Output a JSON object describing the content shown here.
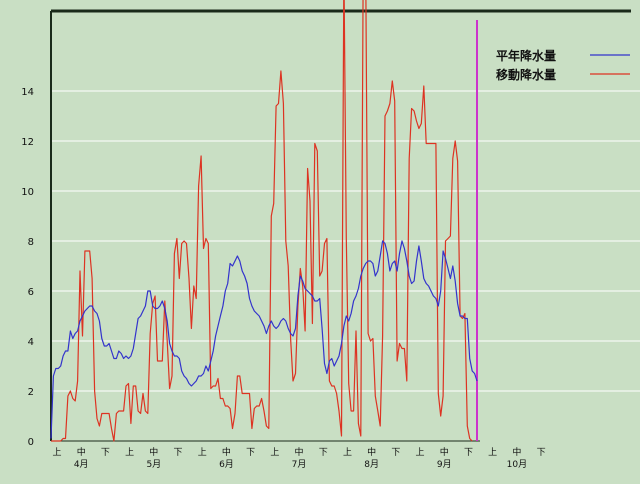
{
  "chart_data": {
    "type": "line",
    "title": "",
    "xlabel": "",
    "ylabel": "",
    "ylim": [
      0,
      17
    ],
    "yticks": [
      0,
      2,
      4,
      6,
      8,
      10,
      12,
      14
    ],
    "grid": "horizontal",
    "legend_position": "top-right",
    "period_labels": [
      "上",
      "中",
      "下",
      "上",
      "中",
      "下",
      "上",
      "中",
      "下",
      "上",
      "中",
      "下",
      "上",
      "中",
      "下",
      "上",
      "中",
      "下",
      "上",
      "中",
      "下"
    ],
    "month_labels": [
      "4月",
      "5月",
      "6月",
      "7月",
      "8月",
      "9月",
      "10月"
    ],
    "x_points_per_period": 10,
    "series": [
      {
        "name": "平年降水量",
        "color": "#3333cc",
        "values": [
          0.1,
          2.6,
          2.9,
          2.9,
          3,
          3.4,
          3.6,
          3.6,
          4.4,
          4.1,
          4.3,
          4.4,
          4.8,
          5,
          5.2,
          5.3,
          5.4,
          5.4,
          5.2,
          5.1,
          4.8,
          4.1,
          3.8,
          3.8,
          3.9,
          3.6,
          3.3,
          3.3,
          3.6,
          3.5,
          3.3,
          3.4,
          3.3,
          3.4,
          3.7,
          4.3,
          4.9,
          5,
          5.2,
          5.4,
          6,
          6,
          5.4,
          5.3,
          5.3,
          5.4,
          5.6,
          5.3,
          4.8,
          3.9,
          3.6,
          3.4,
          3.4,
          3.3,
          2.8,
          2.6,
          2.5,
          2.3,
          2.2,
          2.3,
          2.4,
          2.6,
          2.6,
          2.7,
          3,
          2.8,
          3.2,
          3.6,
          4.2,
          4.6,
          5,
          5.4,
          6,
          6.3,
          7.1,
          7,
          7.2,
          7.4,
          7.2,
          6.8,
          6.6,
          6.3,
          5.7,
          5.4,
          5.2,
          5.1,
          5,
          4.8,
          4.6,
          4.3,
          4.6,
          4.8,
          4.6,
          4.5,
          4.6,
          4.8,
          4.9,
          4.8,
          4.5,
          4.3,
          4.2,
          4.5,
          5.8,
          6.6,
          6.4,
          6.1,
          6,
          5.9,
          5.8,
          5.6,
          5.6,
          5.7,
          4.5,
          3.1,
          2.7,
          3.2,
          3.3,
          3,
          3.2,
          3.4,
          3.9,
          4.6,
          5,
          4.8,
          5.1,
          5.6,
          5.8,
          6.1,
          6.6,
          6.9,
          7.1,
          7.2,
          7.2,
          7.1,
          6.6,
          6.8,
          7.4,
          8,
          7.9,
          7.5,
          6.8,
          7.1,
          7.2,
          6.8,
          7.5,
          8,
          7.7,
          7.2,
          6.6,
          6.3,
          6.4,
          7.2,
          7.8,
          7.2,
          6.5,
          6.3,
          6.2,
          6,
          5.8,
          5.7,
          5.4,
          6,
          7.6,
          7.3,
          6.9,
          6.5,
          7,
          6.4,
          5.5,
          5,
          5,
          4.9,
          4.9,
          3.3,
          2.8,
          2.7,
          2.4
        ]
      },
      {
        "name": "移動降水量",
        "color": "#dd3322",
        "values": [
          0,
          0,
          0,
          0,
          0,
          0.1,
          0.1,
          1.8,
          2,
          1.7,
          1.6,
          2.4,
          6.8,
          4.2,
          7.6,
          7.6,
          7.6,
          6.5,
          2,
          0.9,
          0.6,
          1.1,
          1.1,
          1.1,
          1.1,
          0.5,
          0,
          1.1,
          1.2,
          1.2,
          1.2,
          2.2,
          2.3,
          0.7,
          2.2,
          2.2,
          1.2,
          1.1,
          1.9,
          1.2,
          1.1,
          4.3,
          5.5,
          5.8,
          3.2,
          3.2,
          3.2,
          5.6,
          4,
          2.1,
          2.6,
          7.5,
          8.1,
          6.5,
          7.9,
          8,
          7.9,
          6.5,
          4.5,
          6.2,
          5.7,
          10.2,
          11.4,
          7.7,
          8.1,
          7.9,
          2.1,
          2.2,
          2.2,
          2.5,
          1.7,
          1.7,
          1.4,
          1.4,
          1.3,
          0.5,
          1.1,
          2.6,
          2.6,
          1.9,
          1.9,
          1.9,
          1.9,
          0.5,
          1.3,
          1.4,
          1.4,
          1.7,
          1.2,
          0.6,
          0.5,
          9,
          9.5,
          13.4,
          13.5,
          14.8,
          13.5,
          8,
          7,
          4.1,
          2.4,
          2.7,
          5.4,
          6.9,
          6.2,
          4.4,
          10.9,
          9.6,
          4.7,
          11.9,
          11.6,
          6.6,
          6.8,
          7.9,
          8.1,
          2.4,
          2.2,
          2.2,
          1.9,
          1.2,
          0.2,
          19,
          8.1,
          2.3,
          1.2,
          1.2,
          4.4,
          0.7,
          0.2,
          19,
          19,
          4.3,
          4,
          4.1,
          1.8,
          1.2,
          0.6,
          4.2,
          13,
          13.2,
          13.5,
          14.4,
          13.6,
          3.2,
          3.9,
          3.7,
          3.7,
          2.4,
          11.3,
          13.3,
          13.2,
          12.8,
          12.5,
          12.7,
          14.2,
          11.9,
          11.9,
          11.9,
          11.9,
          11.9,
          1.9,
          1,
          1.8,
          8,
          8.1,
          8.2,
          11.3,
          12,
          11.2,
          5,
          4.9,
          5.1,
          0.6,
          0.1,
          0
        ]
      }
    ]
  }
}
